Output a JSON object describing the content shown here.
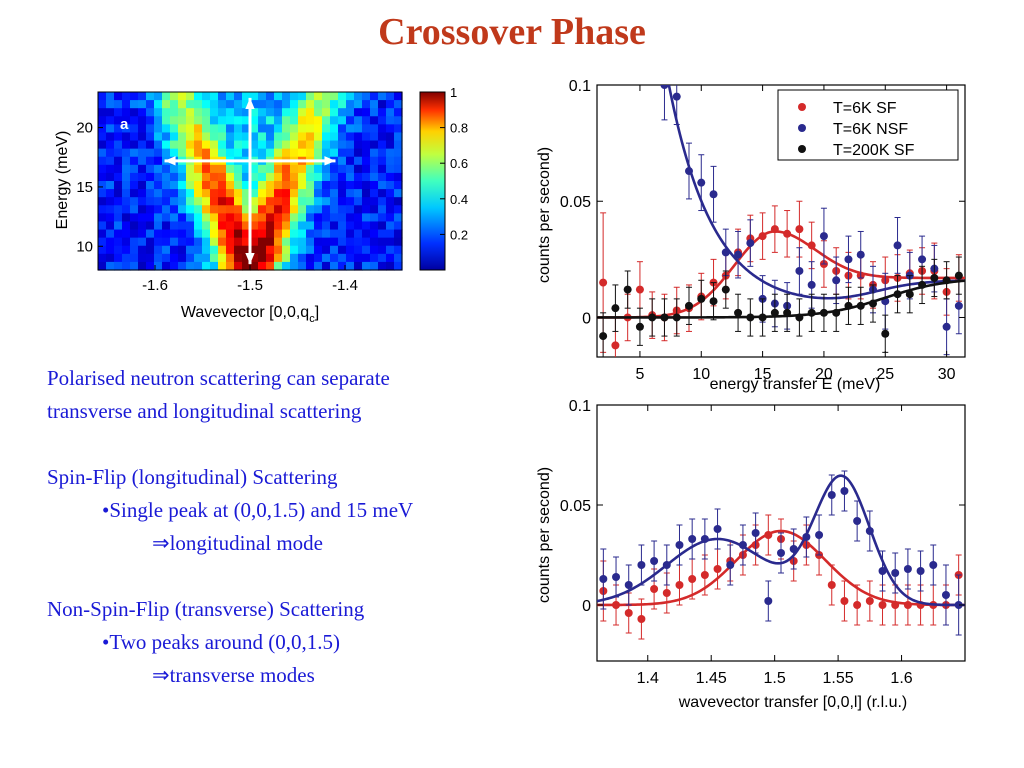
{
  "slide": {
    "title": "Crossover Phase",
    "para1_line1": "Polarised neutron scattering can separate",
    "para1_line2": "transverse and longitudinal scattering",
    "sf_heading": "Spin-Flip (longitudinal) Scattering",
    "sf_bullet": "•Single peak at (0,0,1.5) and 15 meV",
    "sf_result": "⇒longitudinal mode",
    "nsf_heading": "Non-Spin-Flip (transverse) Scattering",
    "nsf_bullet": "•Two peaks around (0,0,1.5)",
    "nsf_result": "⇒transverse modes"
  },
  "colors": {
    "title": "#c0391b",
    "text": "#1a1ad6",
    "sf": "#d42a2a",
    "nsf": "#2a2a8e",
    "highT": "#111111"
  },
  "chart_data": [
    {
      "type": "heatmap",
      "panel_label": "a",
      "xlabel": "Wavevector [0,0,q",
      "xlabel_sub": "c",
      "xlabel_end": "]",
      "ylabel": "Energy (meV)",
      "xlim": [
        -1.66,
        -1.34
      ],
      "ylim": [
        8,
        23
      ],
      "xticks": [
        -1.6,
        -1.5,
        -1.4
      ],
      "xtick_labels": [
        "-1.6",
        "-1.5",
        "-1.4"
      ],
      "yticks": [
        10,
        15,
        20
      ],
      "ytick_labels": [
        "10",
        "15",
        "20"
      ],
      "colorbar_ticks": [
        0.2,
        0.4,
        0.6,
        0.8,
        1
      ],
      "colorbar_labels": [
        "0.2",
        "0.4",
        "0.6",
        "0.8",
        "1"
      ],
      "colormap": "jet",
      "cone_vertex": {
        "x": -1.5,
        "y": 8
      },
      "cone_branch_slope_meV_per_rlu": 200,
      "arrows": [
        {
          "from": [
            -1.5,
            8.5
          ],
          "to": [
            -1.5,
            22.5
          ]
        },
        {
          "from": [
            -1.59,
            17.2
          ],
          "to": [
            -1.41,
            17.2
          ]
        }
      ]
    },
    {
      "type": "scatter",
      "xlabel": "energy transfer E (meV)",
      "ylabel": "counts per second)",
      "xlim": [
        1.5,
        31.5
      ],
      "ylim": [
        -0.017,
        0.1
      ],
      "xticks": [
        5,
        10,
        15,
        20,
        25,
        30
      ],
      "xtick_labels": [
        "5",
        "10",
        "15",
        "20",
        "25",
        "30"
      ],
      "yticks": [
        0,
        0.05,
        0.1
      ],
      "ytick_labels": [
        "0",
        "0.05",
        "0.1"
      ],
      "legend_position": "top-right",
      "series": [
        {
          "name": "T=6K SF",
          "color": "#d42a2a",
          "x": [
            2,
            3,
            4,
            5,
            6,
            7,
            8,
            9,
            10,
            11,
            12,
            13,
            14,
            15,
            16,
            17,
            18,
            19,
            20,
            21,
            22,
            23,
            24,
            25,
            26,
            27,
            28,
            29,
            30,
            31
          ],
          "y": [
            0.015,
            -0.012,
            0.0,
            0.012,
            0.001,
            0.0,
            0.003,
            0.004,
            0.009,
            0.015,
            0.018,
            0.028,
            0.034,
            0.035,
            0.038,
            0.036,
            0.038,
            0.031,
            0.023,
            0.02,
            0.018,
            0.018,
            0.014,
            0.016,
            0.017,
            0.019,
            0.02,
            0.02,
            0.011,
            0.017
          ],
          "err": [
            0.03,
            0.012,
            0.01,
            0.012,
            0.01,
            0.01,
            0.01,
            0.01,
            0.01,
            0.01,
            0.01,
            0.01,
            0.01,
            0.01,
            0.01,
            0.01,
            0.012,
            0.01,
            0.01,
            0.01,
            0.01,
            0.01,
            0.01,
            0.01,
            0.01,
            0.01,
            0.01,
            0.012,
            0.01,
            0.01
          ],
          "fit": {
            "baseline": 0.017,
            "amplitude": 0.02,
            "center": 16,
            "width": 3.3,
            "lower_baseline": 0.0
          }
        },
        {
          "name": "T=6K NSF",
          "color": "#2a2a8e",
          "x": [
            7,
            8,
            9,
            10,
            11,
            12,
            13,
            14,
            15,
            16,
            17,
            18,
            19,
            20,
            21,
            22,
            23,
            24,
            25,
            26,
            27,
            28,
            29,
            30,
            31
          ],
          "y": [
            0.1,
            0.095,
            0.063,
            0.058,
            0.053,
            0.028,
            0.027,
            0.032,
            0.008,
            0.006,
            0.005,
            0.02,
            0.014,
            0.035,
            0.016,
            0.025,
            0.027,
            0.012,
            0.007,
            0.031,
            0.018,
            0.025,
            0.021,
            -0.004,
            0.005
          ],
          "err": [
            0.015,
            0.012,
            0.012,
            0.012,
            0.012,
            0.01,
            0.01,
            0.01,
            0.01,
            0.01,
            0.01,
            0.01,
            0.01,
            0.012,
            0.01,
            0.01,
            0.01,
            0.01,
            0.012,
            0.012,
            0.01,
            0.01,
            0.01,
            0.012,
            0.012
          ],
          "fit": {
            "offset": 0.004,
            "amplitude": 0.185,
            "decay_meV": 3.6
          }
        },
        {
          "name": "T=200K SF",
          "color": "#111111",
          "x": [
            2,
            3,
            4,
            5,
            6,
            7,
            8,
            9,
            10,
            11,
            12,
            13,
            14,
            15,
            16,
            17,
            18,
            19,
            20,
            21,
            22,
            23,
            24,
            25,
            26,
            27,
            28,
            29,
            30,
            31
          ],
          "y": [
            -0.008,
            0.004,
            0.012,
            -0.004,
            0.0,
            0.0,
            0.0,
            0.005,
            0.008,
            0.007,
            0.012,
            0.002,
            0.0,
            0.0,
            0.002,
            0.002,
            0.0,
            0.002,
            0.002,
            0.002,
            0.005,
            0.005,
            0.006,
            -0.007,
            0.01,
            0.01,
            0.014,
            0.017,
            0.016,
            0.018
          ],
          "err": [
            0.01,
            0.01,
            0.008,
            0.008,
            0.008,
            0.008,
            0.008,
            0.008,
            0.008,
            0.008,
            0.008,
            0.008,
            0.008,
            0.008,
            0.008,
            0.008,
            0.008,
            0.008,
            0.008,
            0.008,
            0.008,
            0.008,
            0.008,
            0.008,
            0.008,
            0.008,
            0.008,
            0.008,
            0.008,
            0.008
          ],
          "fit": {
            "offset": 0.0,
            "rise_start_meV": 20,
            "plateau": 0.017,
            "rise_scale_meV": 2.5
          }
        }
      ]
    },
    {
      "type": "scatter",
      "xlabel": "wavevector transfer [0,0,l] (r.l.u.)",
      "ylabel": "counts per second)",
      "xlim": [
        1.36,
        1.65
      ],
      "ylim": [
        -0.028,
        0.1
      ],
      "xticks": [
        1.4,
        1.45,
        1.5,
        1.55,
        1.6
      ],
      "xtick_labels": [
        "1.4",
        "1.45",
        "1.5",
        "1.55",
        "1.6"
      ],
      "yticks": [
        0,
        0.05,
        0.1
      ],
      "ytick_labels": [
        "0",
        "0.05",
        "0.1"
      ],
      "series": [
        {
          "name": "T=6K SF",
          "color": "#d42a2a",
          "x": [
            1.365,
            1.375,
            1.385,
            1.395,
            1.405,
            1.415,
            1.425,
            1.435,
            1.445,
            1.455,
            1.465,
            1.475,
            1.485,
            1.495,
            1.505,
            1.515,
            1.525,
            1.535,
            1.545,
            1.555,
            1.565,
            1.575,
            1.585,
            1.595,
            1.605,
            1.615,
            1.625,
            1.635,
            1.645
          ],
          "y": [
            0.007,
            0.0,
            -0.004,
            -0.007,
            0.008,
            0.006,
            0.01,
            0.013,
            0.015,
            0.018,
            0.022,
            0.025,
            0.03,
            0.035,
            0.033,
            0.022,
            0.03,
            0.025,
            0.01,
            0.002,
            0.0,
            0.002,
            0.0,
            0.0,
            0.0,
            0.0,
            0.0,
            0.0,
            0.015
          ],
          "err": [
            0.015,
            0.01,
            0.01,
            0.01,
            0.01,
            0.01,
            0.01,
            0.01,
            0.01,
            0.01,
            0.01,
            0.01,
            0.01,
            0.01,
            0.01,
            0.01,
            0.01,
            0.01,
            0.01,
            0.01,
            0.01,
            0.01,
            0.01,
            0.01,
            0.01,
            0.01,
            0.01,
            0.01,
            0.01
          ],
          "fit": {
            "offset": 0.0,
            "amplitude": 0.037,
            "center": 1.505,
            "width": 0.035
          }
        },
        {
          "name": "T=6K NSF",
          "color": "#2a2a8e",
          "x": [
            1.365,
            1.375,
            1.385,
            1.395,
            1.405,
            1.415,
            1.425,
            1.435,
            1.445,
            1.455,
            1.465,
            1.475,
            1.485,
            1.495,
            1.505,
            1.515,
            1.525,
            1.535,
            1.545,
            1.555,
            1.565,
            1.575,
            1.585,
            1.595,
            1.605,
            1.615,
            1.625,
            1.635,
            1.645
          ],
          "y": [
            0.013,
            0.014,
            0.01,
            0.02,
            0.022,
            0.02,
            0.03,
            0.033,
            0.033,
            0.038,
            0.02,
            0.03,
            0.036,
            0.002,
            0.026,
            0.028,
            0.034,
            0.035,
            0.055,
            0.057,
            0.042,
            0.037,
            0.017,
            0.016,
            0.018,
            0.017,
            0.02,
            0.005,
            0.0
          ],
          "err": [
            0.015,
            0.01,
            0.01,
            0.01,
            0.01,
            0.01,
            0.01,
            0.01,
            0.01,
            0.01,
            0.01,
            0.01,
            0.01,
            0.01,
            0.01,
            0.01,
            0.01,
            0.01,
            0.01,
            0.01,
            0.01,
            0.01,
            0.01,
            0.01,
            0.01,
            0.01,
            0.01,
            0.015,
            0.015
          ],
          "fit": {
            "offset": 0.0,
            "peaks": [
              {
                "center": 1.455,
                "amplitude": 0.033,
                "width": 0.04
              },
              {
                "center": 1.553,
                "amplitude": 0.063,
                "width": 0.022
              }
            ]
          }
        }
      ]
    }
  ]
}
